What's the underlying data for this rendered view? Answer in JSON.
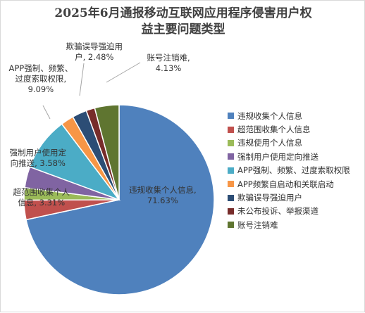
{
  "chart_data": {
    "type": "pie",
    "title_lines": [
      "2025年6月通报移动互联网应用程序侵害用户权",
      "益主要问题类型"
    ],
    "series": [
      {
        "label": "违规收集个人信息",
        "value": 71.63,
        "color": "#4f81bd",
        "datalabel_lines": [
          "违规收集个人信息,",
          "71.63%"
        ]
      },
      {
        "label": "超范围收集个人信息",
        "value": 3.31,
        "color": "#c0504d",
        "datalabel_lines": [
          "超范围收集个人",
          "信息, 3.31%"
        ]
      },
      {
        "label": "违规使用个人信息",
        "value": 2.1,
        "color": "#9bbb59",
        "datalabel_lines": []
      },
      {
        "label": "强制用户使用定向推送",
        "value": 3.58,
        "color": "#8064a2",
        "datalabel_lines": [
          "强制用户使用定",
          "向推送, 3.58%"
        ]
      },
      {
        "label": "APP强制、频繁、过度索取权限",
        "value": 9.09,
        "color": "#4bacc6",
        "datalabel_lines": [
          "APP强制、频繁、",
          "过度索取权限,",
          "9.09%"
        ]
      },
      {
        "label": "APP频繁自启动和关联启动",
        "value": 2.2,
        "color": "#f79646",
        "datalabel_lines": []
      },
      {
        "label": "欺骗误导强迫用户",
        "value": 2.48,
        "color": "#2c4d75",
        "datalabel_lines": [
          "欺骗误导强迫用",
          "户, 2.48%"
        ]
      },
      {
        "label": "未公布投诉、举报渠道",
        "value": 1.48,
        "color": "#772c2a",
        "datalabel_lines": []
      },
      {
        "label": "账号注销难",
        "value": 4.13,
        "color": "#5f7530",
        "datalabel_lines": [
          "账号注销难,",
          "4.13%"
        ]
      }
    ],
    "start_angle_deg": 0,
    "direction": "clockwise",
    "legend_position": "right"
  }
}
